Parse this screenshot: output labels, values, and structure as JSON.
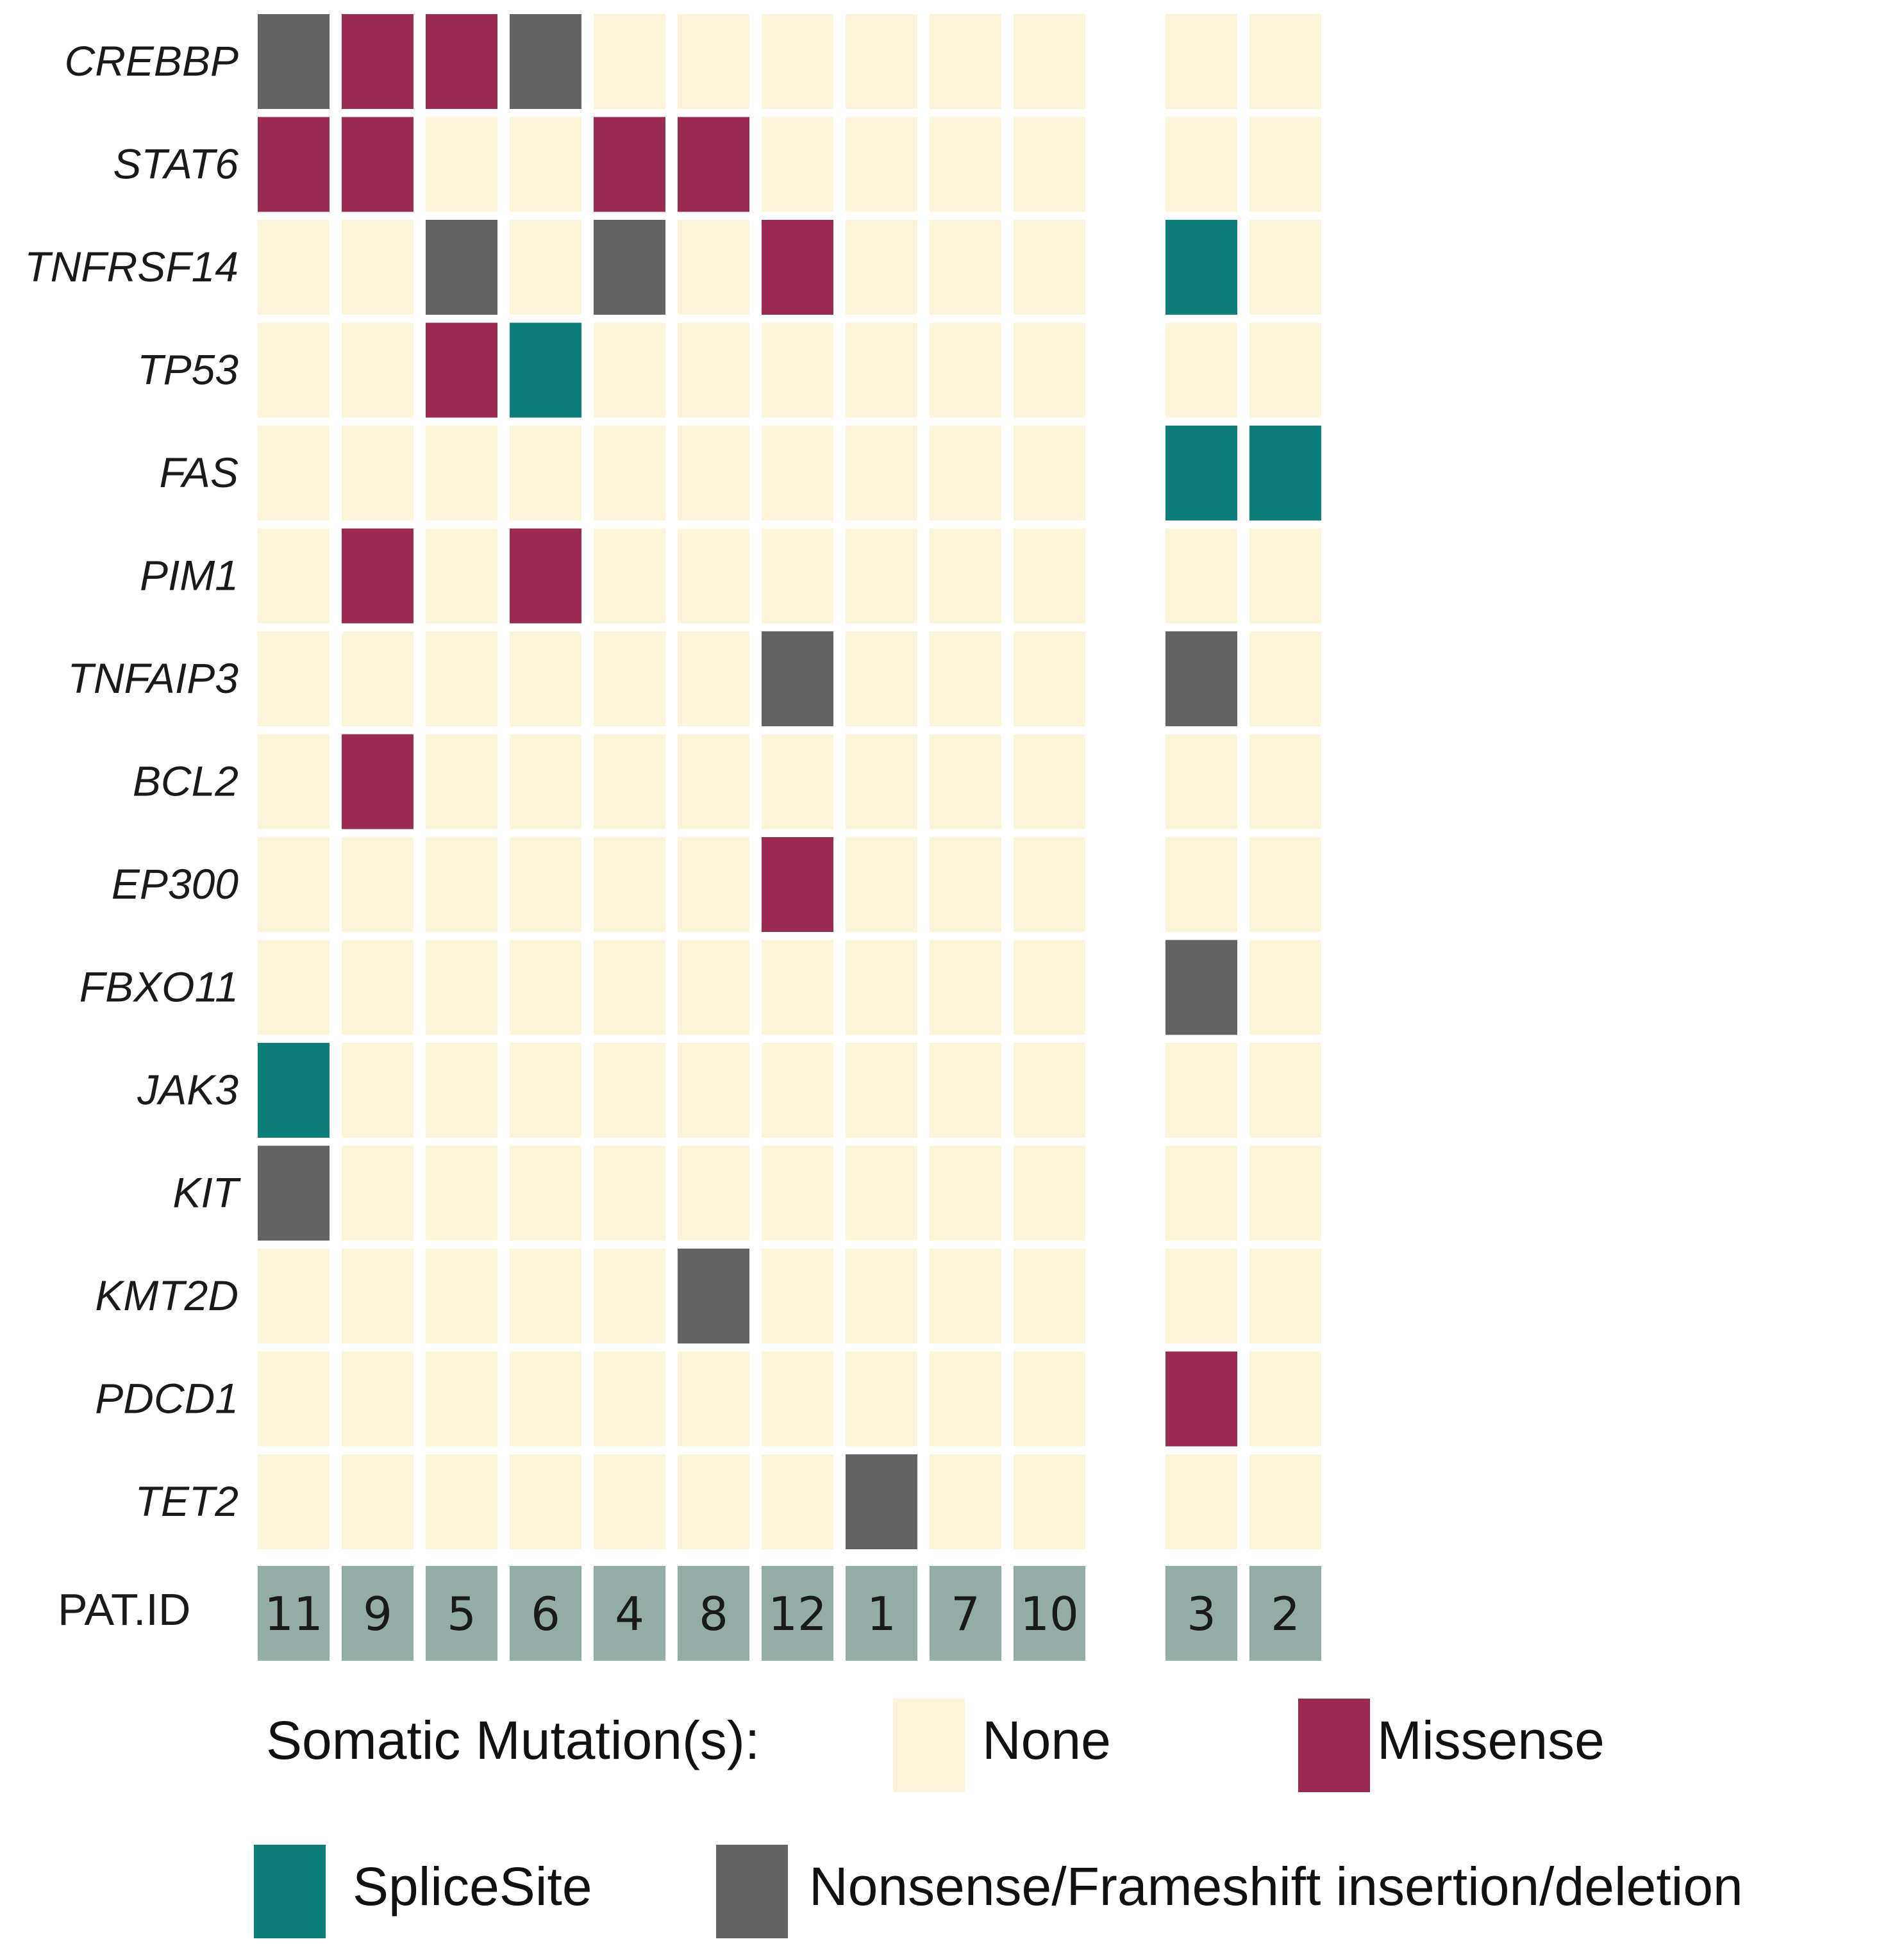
{
  "chart_data": {
    "type": "heatmap",
    "title": "",
    "row_axis_label": "",
    "patient_row_label": "PAT.ID",
    "genes": [
      "CREBBP",
      "STAT6",
      "TNFRSF14",
      "TP53",
      "FAS",
      "PIM1",
      "TNFAIP3",
      "BCL2",
      "EP300",
      "FBXO11",
      "JAK3",
      "KIT",
      "KMT2D",
      "PDCD1",
      "TET2"
    ],
    "patient_groups": [
      [
        "11",
        "9",
        "5",
        "6",
        "4",
        "8",
        "12",
        "1",
        "7",
        "10"
      ],
      [
        "3",
        "2"
      ]
    ],
    "patients": [
      "11",
      "9",
      "5",
      "6",
      "4",
      "8",
      "12",
      "1",
      "7",
      "10",
      "3",
      "2"
    ],
    "mutations": {
      "CREBBP": [
        "Nonsense/Frameshift insertion/deletion",
        "Missense",
        "Missense",
        "Nonsense/Frameshift insertion/deletion",
        "None",
        "None",
        "None",
        "None",
        "None",
        "None",
        "None",
        "None"
      ],
      "STAT6": [
        "Missense",
        "Missense",
        "None",
        "None",
        "Missense",
        "Missense",
        "None",
        "None",
        "None",
        "None",
        "None",
        "None"
      ],
      "TNFRSF14": [
        "None",
        "None",
        "Nonsense/Frameshift insertion/deletion",
        "None",
        "Nonsense/Frameshift insertion/deletion",
        "None",
        "Missense",
        "None",
        "None",
        "None",
        "SpliceSite",
        "None"
      ],
      "TP53": [
        "None",
        "None",
        "Missense",
        "SpliceSite",
        "None",
        "None",
        "None",
        "None",
        "None",
        "None",
        "None",
        "None"
      ],
      "FAS": [
        "None",
        "None",
        "None",
        "None",
        "None",
        "None",
        "None",
        "None",
        "None",
        "None",
        "SpliceSite",
        "SpliceSite"
      ],
      "PIM1": [
        "None",
        "Missense",
        "None",
        "Missense",
        "None",
        "None",
        "None",
        "None",
        "None",
        "None",
        "None",
        "None"
      ],
      "TNFAIP3": [
        "None",
        "None",
        "None",
        "None",
        "None",
        "None",
        "Nonsense/Frameshift insertion/deletion",
        "None",
        "None",
        "None",
        "Nonsense/Frameshift insertion/deletion",
        "None"
      ],
      "BCL2": [
        "None",
        "Missense",
        "None",
        "None",
        "None",
        "None",
        "None",
        "None",
        "None",
        "None",
        "None",
        "None"
      ],
      "EP300": [
        "None",
        "None",
        "None",
        "None",
        "None",
        "None",
        "Missense",
        "None",
        "None",
        "None",
        "None",
        "None"
      ],
      "FBXO11": [
        "None",
        "None",
        "None",
        "None",
        "None",
        "None",
        "None",
        "None",
        "None",
        "None",
        "Nonsense/Frameshift insertion/deletion",
        "None"
      ],
      "JAK3": [
        "SpliceSite",
        "None",
        "None",
        "None",
        "None",
        "None",
        "None",
        "None",
        "None",
        "None",
        "None",
        "None"
      ],
      "KIT": [
        "Nonsense/Frameshift insertion/deletion",
        "None",
        "None",
        "None",
        "None",
        "None",
        "None",
        "None",
        "None",
        "None",
        "None",
        "None"
      ],
      "KMT2D": [
        "None",
        "None",
        "None",
        "None",
        "None",
        "Nonsense/Frameshift insertion/deletion",
        "None",
        "None",
        "None",
        "None",
        "None",
        "None"
      ],
      "PDCD1": [
        "None",
        "None",
        "None",
        "None",
        "None",
        "None",
        "None",
        "None",
        "None",
        "None",
        "Missense",
        "None"
      ],
      "TET2": [
        "None",
        "None",
        "None",
        "None",
        "None",
        "None",
        "None",
        "Nonsense/Frameshift insertion/deletion",
        "None",
        "None",
        "None",
        "None"
      ]
    },
    "legend": {
      "title": "Somatic Mutation(s):",
      "items": [
        {
          "label": "None",
          "color": "#FDF5D9"
        },
        {
          "label": "Missense",
          "color": "#9B2A52"
        },
        {
          "label": "SpliceSite",
          "color": "#0E7E7B"
        },
        {
          "label": "Nonsense/Frameshift insertion/deletion",
          "color": "#636363"
        }
      ]
    },
    "patient_cell_color": "#93ACA6"
  }
}
